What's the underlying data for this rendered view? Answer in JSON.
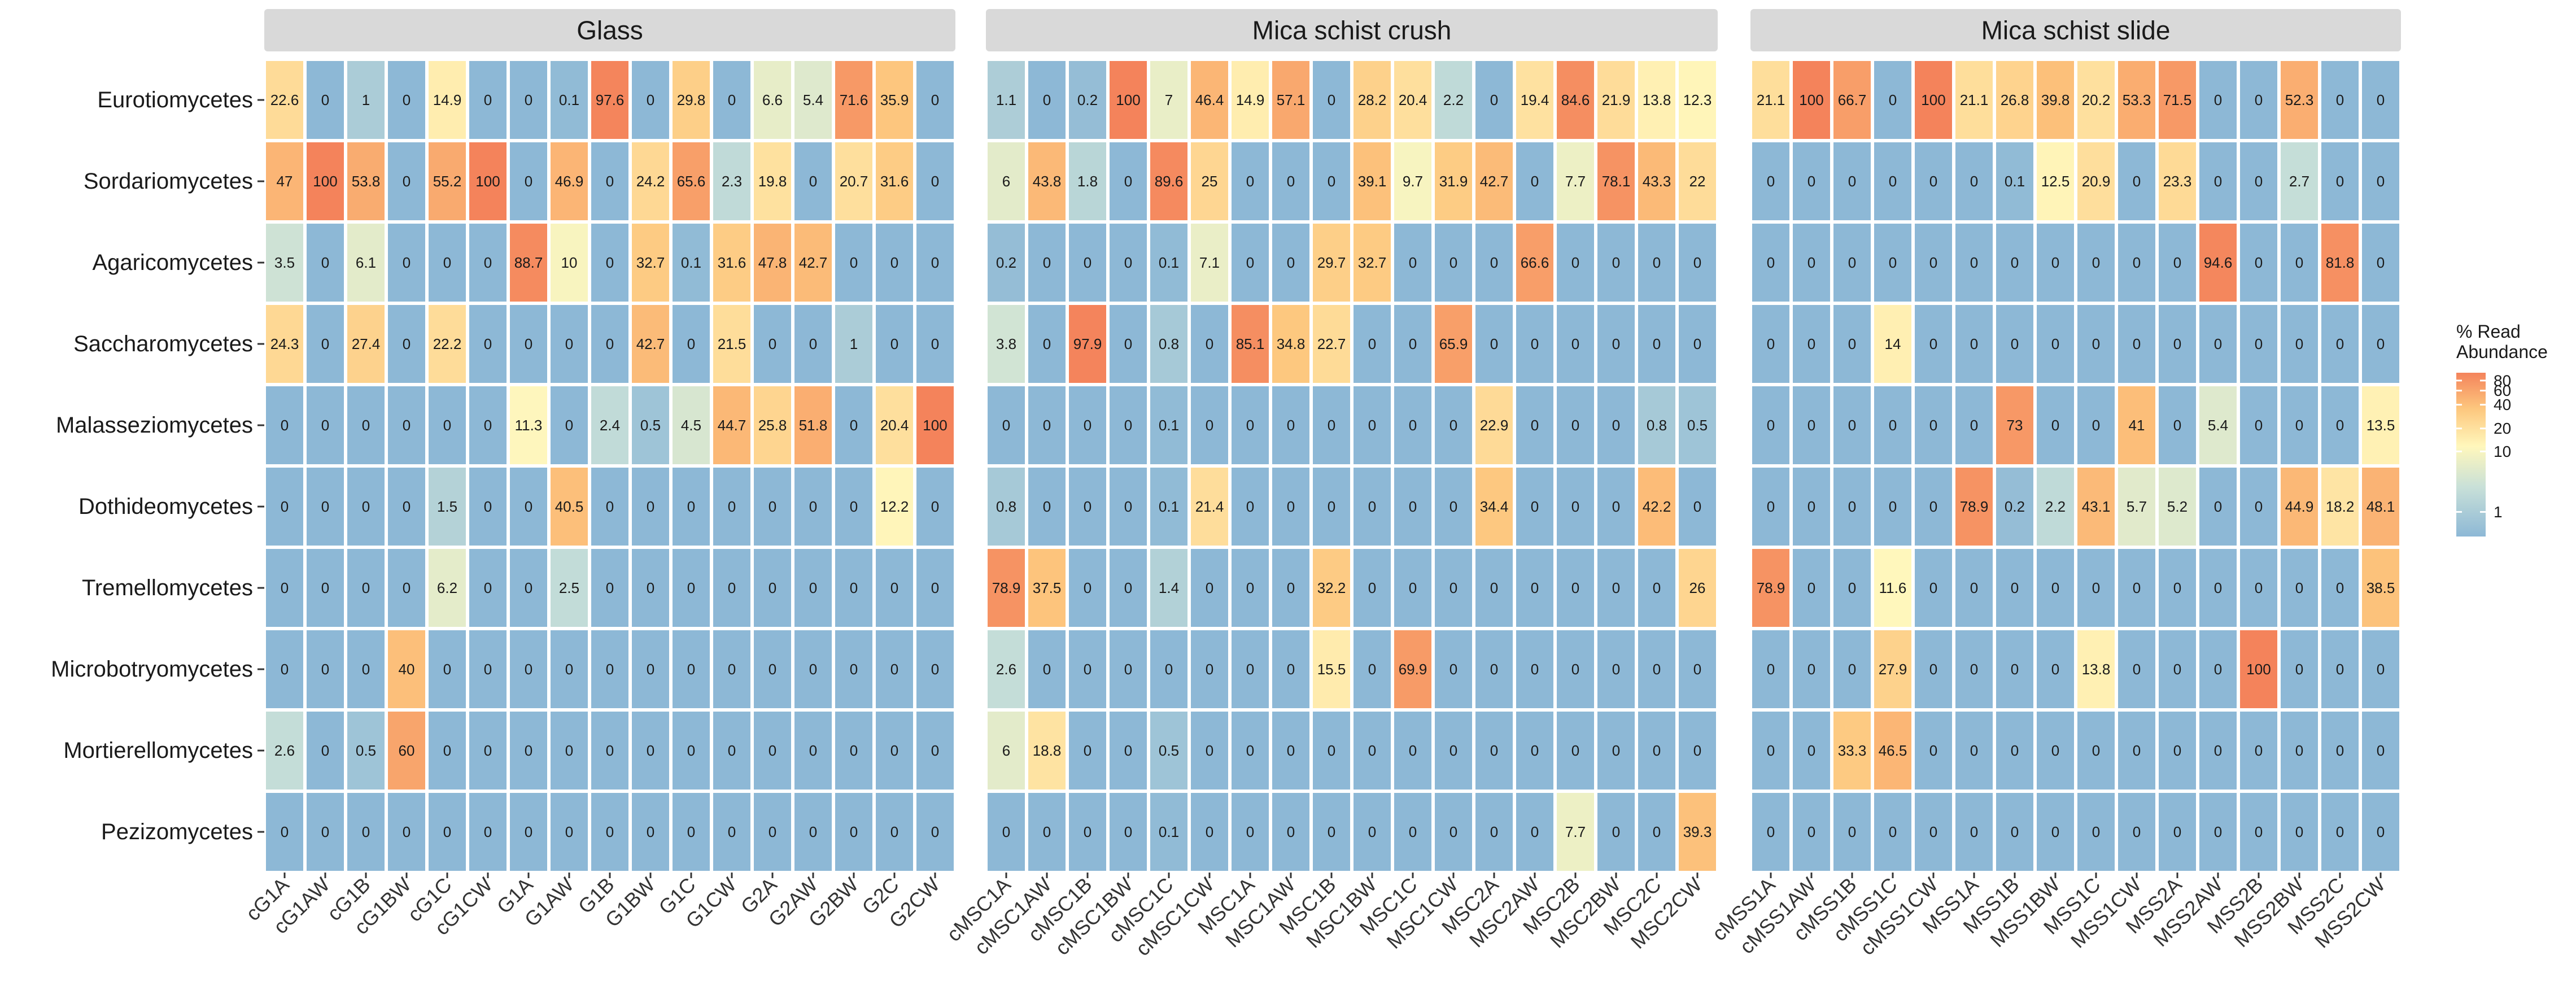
{
  "chart_data": {
    "type": "heatmap",
    "value_label": "% Read Abundance",
    "legend": {
      "title_lines": [
        "% Read",
        "Abundance"
      ],
      "ticks": [
        "80",
        "60",
        "40",
        "20",
        "10",
        "1"
      ],
      "tick_values": [
        80,
        60,
        40,
        20,
        10,
        1
      ],
      "colors": {
        "low": "#8db8d6",
        "mid": "#fff7bc",
        "high": "#f4835b"
      }
    },
    "rows": [
      "Eurotiomycetes",
      "Sordariomycetes",
      "Agaricomycetes",
      "Saccharomycetes",
      "Malasseziomycetes",
      "Dothideomycetes",
      "Tremellomycetes",
      "Microbotryomycetes",
      "Mortierellomycetes",
      "Pezizomycetes"
    ],
    "panels": [
      {
        "title": "Glass",
        "columns": [
          "cG1A",
          "cG1AW",
          "cG1B",
          "cG1BW",
          "cG1C",
          "cG1CW",
          "G1A",
          "G1AW",
          "G1B",
          "G1BW",
          "G1C",
          "G1CW",
          "G2A",
          "G2AW",
          "G2BW",
          "G2C",
          "G2CW"
        ],
        "values": [
          [
            "22.6",
            "0",
            "1",
            "0",
            "14.9",
            "0",
            "0",
            "0.1",
            "97.6",
            "0",
            "29.8",
            "0",
            "6.6",
            "5.4",
            "71.6",
            "35.9",
            "0"
          ],
          [
            "47",
            "100",
            "53.8",
            "0",
            "55.2",
            "100",
            "0",
            "46.9",
            "0",
            "24.2",
            "65.6",
            "2.3",
            "19.8",
            "0",
            "20.7",
            "31.6",
            "0"
          ],
          [
            "3.5",
            "0",
            "6.1",
            "0",
            "0",
            "0",
            "88.7",
            "10",
            "0",
            "32.7",
            "0.1",
            "31.6",
            "47.8",
            "42.7",
            "0",
            "0",
            "0"
          ],
          [
            "24.3",
            "0",
            "27.4",
            "0",
            "22.2",
            "0",
            "0",
            "0",
            "0",
            "42.7",
            "0",
            "21.5",
            "0",
            "0",
            "1",
            "0",
            "0"
          ],
          [
            "0",
            "0",
            "0",
            "0",
            "0",
            "0",
            "11.3",
            "0",
            "2.4",
            "0.5",
            "4.5",
            "44.7",
            "25.8",
            "51.8",
            "0",
            "20.4",
            "100"
          ],
          [
            "0",
            "0",
            "0",
            "0",
            "1.5",
            "0",
            "0",
            "40.5",
            "0",
            "0",
            "0",
            "0",
            "0",
            "0",
            "0",
            "12.2",
            "0"
          ],
          [
            "0",
            "0",
            "0",
            "0",
            "6.2",
            "0",
            "0",
            "2.5",
            "0",
            "0",
            "0",
            "0",
            "0",
            "0",
            "0",
            "0",
            "0"
          ],
          [
            "0",
            "0",
            "0",
            "40",
            "0",
            "0",
            "0",
            "0",
            "0",
            "0",
            "0",
            "0",
            "0",
            "0",
            "0",
            "0",
            "0"
          ],
          [
            "2.6",
            "0",
            "0.5",
            "60",
            "0",
            "0",
            "0",
            "0",
            "0",
            "0",
            "0",
            "0",
            "0",
            "0",
            "0",
            "0",
            "0"
          ],
          [
            "0",
            "0",
            "0",
            "0",
            "0",
            "0",
            "0",
            "0",
            "0",
            "0",
            "0",
            "0",
            "0",
            "0",
            "0",
            "0",
            "0"
          ]
        ]
      },
      {
        "title": "Mica schist crush",
        "columns": [
          "cMSC1A",
          "cMSC1AW",
          "cMSC1B",
          "cMSC1BW",
          "cMSC1C",
          "cMSC1CW",
          "MSC1A",
          "MSC1AW",
          "MSC1B",
          "MSC1BW",
          "MSC1C",
          "MSC1CW",
          "MSC2A",
          "MSC2AW",
          "MSC2B",
          "MSC2BW",
          "MSC2C",
          "MSC2CW"
        ],
        "values": [
          [
            "1.1",
            "0",
            "0.2",
            "100",
            "7",
            "46.4",
            "14.9",
            "57.1",
            "0",
            "28.2",
            "20.4",
            "2.2",
            "0",
            "19.4",
            "84.6",
            "21.9",
            "13.8",
            "12.3"
          ],
          [
            "6",
            "43.8",
            "1.8",
            "0",
            "89.6",
            "25",
            "0",
            "0",
            "0",
            "39.1",
            "9.7",
            "31.9",
            "42.7",
            "0",
            "7.7",
            "78.1",
            "43.3",
            "22"
          ],
          [
            "0.2",
            "0",
            "0",
            "0",
            "0.1",
            "7.1",
            "0",
            "0",
            "29.7",
            "32.7",
            "0",
            "0",
            "0",
            "66.6",
            "0",
            "0",
            "0",
            "0"
          ],
          [
            "3.8",
            "0",
            "97.9",
            "0",
            "0.8",
            "0",
            "85.1",
            "34.8",
            "22.7",
            "0",
            "0",
            "65.9",
            "0",
            "0",
            "0",
            "0",
            "0",
            "0"
          ],
          [
            "0",
            "0",
            "0",
            "0",
            "0.1",
            "0",
            "0",
            "0",
            "0",
            "0",
            "0",
            "0",
            "22.9",
            "0",
            "0",
            "0",
            "0.8",
            "0.5"
          ],
          [
            "0.8",
            "0",
            "0",
            "0",
            "0.1",
            "21.4",
            "0",
            "0",
            "0",
            "0",
            "0",
            "0",
            "34.4",
            "0",
            "0",
            "0",
            "42.2",
            "0"
          ],
          [
            "78.9",
            "37.5",
            "0",
            "0",
            "1.4",
            "0",
            "0",
            "0",
            "32.2",
            "0",
            "0",
            "0",
            "0",
            "0",
            "0",
            "0",
            "0",
            "26"
          ],
          [
            "2.6",
            "0",
            "0",
            "0",
            "0",
            "0",
            "0",
            "0",
            "15.5",
            "0",
            "69.9",
            "0",
            "0",
            "0",
            "0",
            "0",
            "0",
            "0"
          ],
          [
            "6",
            "18.8",
            "0",
            "0",
            "0.5",
            "0",
            "0",
            "0",
            "0",
            "0",
            "0",
            "0",
            "0",
            "0",
            "0",
            "0",
            "0",
            "0"
          ],
          [
            "0",
            "0",
            "0",
            "0",
            "0.1",
            "0",
            "0",
            "0",
            "0",
            "0",
            "0",
            "0",
            "0",
            "0",
            "7.7",
            "0",
            "0",
            "39.3"
          ]
        ]
      },
      {
        "title": "Mica schist slide",
        "columns": [
          "cMSS1A",
          "cMSS1AW",
          "cMSS1B",
          "cMSS1C",
          "cMSS1CW",
          "MSS1A",
          "MSS1B",
          "MSS1BW",
          "MSS1C",
          "MSS1CW",
          "MSS2A",
          "MSS2AW",
          "MSS2B",
          "MSS2BW",
          "MSS2C",
          "MSS2CW"
        ],
        "values": [
          [
            "21.1",
            "100",
            "66.7",
            "0",
            "100",
            "21.1",
            "26.8",
            "39.8",
            "20.2",
            "53.3",
            "71.5",
            "0",
            "0",
            "52.3",
            "0",
            "0"
          ],
          [
            "0",
            "0",
            "0",
            "0",
            "0",
            "0",
            "0.1",
            "12.5",
            "20.9",
            "0",
            "23.3",
            "0",
            "0",
            "2.7",
            "0",
            "0"
          ],
          [
            "0",
            "0",
            "0",
            "0",
            "0",
            "0",
            "0",
            "0",
            "0",
            "0",
            "0",
            "94.6",
            "0",
            "0",
            "81.8",
            "0"
          ],
          [
            "0",
            "0",
            "0",
            "14",
            "0",
            "0",
            "0",
            "0",
            "0",
            "0",
            "0",
            "0",
            "0",
            "0",
            "0",
            "0"
          ],
          [
            "0",
            "0",
            "0",
            "0",
            "0",
            "0",
            "73",
            "0",
            "0",
            "41",
            "0",
            "5.4",
            "0",
            "0",
            "0",
            "13.5"
          ],
          [
            "0",
            "0",
            "0",
            "0",
            "0",
            "78.9",
            "0.2",
            "2.2",
            "43.1",
            "5.7",
            "5.2",
            "0",
            "0",
            "44.9",
            "18.2",
            "48.1"
          ],
          [
            "78.9",
            "0",
            "0",
            "11.6",
            "0",
            "0",
            "0",
            "0",
            "0",
            "0",
            "0",
            "0",
            "0",
            "0",
            "0",
            "38.5"
          ],
          [
            "0",
            "0",
            "0",
            "27.9",
            "0",
            "0",
            "0",
            "0",
            "13.8",
            "0",
            "0",
            "0",
            "100",
            "0",
            "0",
            "0"
          ],
          [
            "0",
            "0",
            "33.3",
            "46.5",
            "0",
            "0",
            "0",
            "0",
            "0",
            "0",
            "0",
            "0",
            "0",
            "0",
            "0",
            "0"
          ],
          [
            "0",
            "0",
            "0",
            "0",
            "0",
            "0",
            "0",
            "0",
            "0",
            "0",
            "0",
            "0",
            "0",
            "0",
            "0",
            "0"
          ]
        ]
      }
    ]
  }
}
